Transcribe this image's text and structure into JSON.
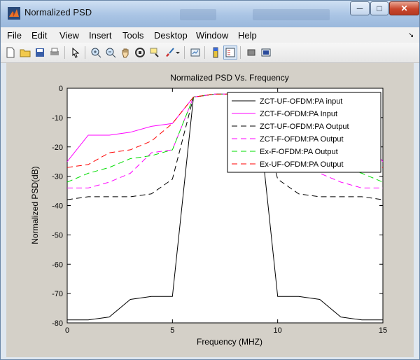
{
  "window": {
    "title": "Normalized PSD"
  },
  "menu": [
    "File",
    "Edit",
    "View",
    "Insert",
    "Tools",
    "Desktop",
    "Window",
    "Help"
  ],
  "toolbar_icons": [
    "new-file-icon",
    "open-folder-icon",
    "save-icon",
    "print-icon",
    "pointer-icon",
    "zoom-in-icon",
    "zoom-out-icon",
    "pan-hand-icon",
    "rotate-3d-icon",
    "data-cursor-icon",
    "brush-icon",
    "brush-dropdown-icon",
    "link-plot-icon",
    "colorbar-icon",
    "legend-icon",
    "hide-plot-tools-icon",
    "show-plot-tools-icon"
  ],
  "chart_data": {
    "type": "line",
    "title": "Normalized PSD Vs. Frequency",
    "xlabel": "Frequency (MHZ)",
    "ylabel": "Normalized PSD(dB)",
    "xlim": [
      0,
      15
    ],
    "ylim": [
      -80,
      0
    ],
    "xticks": [
      "0",
      "5",
      "10",
      "15"
    ],
    "yticks": [
      "0",
      "-10",
      "-20",
      "-30",
      "-40",
      "-50",
      "-60",
      "-70",
      "-80"
    ],
    "legend_position": "top-right",
    "series": [
      {
        "name": "ZCT-UF-OFDM:PA input",
        "color": "#000000",
        "dash": "solid",
        "x": [
          0,
          1,
          2,
          3,
          4,
          5,
          6,
          7,
          8,
          9,
          10,
          11,
          12,
          13,
          14,
          15
        ],
        "y": [
          -79,
          -79,
          -78,
          -72,
          -71,
          -71,
          -3,
          -2,
          -2,
          -3,
          -71,
          -71,
          -72,
          -78,
          -79,
          -79
        ]
      },
      {
        "name": "ZCT-F-OFDM:PA Input",
        "color": "#ff00ff",
        "dash": "solid",
        "x": [
          0,
          1,
          2,
          3,
          4,
          5,
          6,
          7,
          8,
          9,
          10,
          11,
          12,
          13,
          14,
          15
        ],
        "y": [
          -25,
          -16,
          -16,
          -15,
          -13,
          -12,
          -3,
          -2,
          -2,
          -3,
          -12,
          -13,
          -15,
          -16,
          -16,
          -25
        ]
      },
      {
        "name": "ZCT-UF-OFDM:PA Output",
        "color": "#000000",
        "dash": "long",
        "x": [
          0,
          1,
          2,
          3,
          4,
          5,
          6,
          7,
          8,
          9,
          10,
          11,
          12,
          13,
          14,
          15
        ],
        "y": [
          -38,
          -37,
          -37,
          -37,
          -36,
          -31,
          -3,
          -2,
          -2,
          -3,
          -31,
          -36,
          -37,
          -37,
          -37,
          -38
        ]
      },
      {
        "name": "ZCT-F-OFDM:PA Output",
        "color": "#ff00ff",
        "dash": "long",
        "x": [
          0,
          1,
          2,
          3,
          4,
          5,
          6,
          7,
          8,
          9,
          10,
          11,
          12,
          13,
          14,
          15
        ],
        "y": [
          -34,
          -34,
          -32,
          -29,
          -22,
          -21,
          -3,
          -2,
          -2,
          -3,
          -21,
          -22,
          -29,
          -32,
          -34,
          -34
        ]
      },
      {
        "name": "Ex-F-OFDM:PA Output",
        "color": "#00dd00",
        "dash": "long",
        "x": [
          0,
          1,
          2,
          3,
          4,
          5,
          6,
          7,
          8,
          9,
          10,
          11,
          12,
          13,
          14,
          15
        ],
        "y": [
          -32,
          -29,
          -27,
          -24,
          -23,
          -21,
          -3,
          -2,
          -2,
          -3,
          -21,
          -23,
          -24,
          -27,
          -29,
          -32
        ]
      },
      {
        "name": "Ex-UF-OFDM:PA Output",
        "color": "#ff0000",
        "dash": "long",
        "x": [
          0,
          1,
          2,
          3,
          4,
          5,
          6,
          7,
          8,
          9,
          10,
          11,
          12,
          13,
          14,
          15
        ],
        "y": [
          -27,
          -26,
          -22,
          -21,
          -18,
          -12,
          -3,
          -2,
          -2,
          -3,
          -12,
          -18,
          -21,
          -22,
          -26,
          -27
        ]
      }
    ]
  }
}
